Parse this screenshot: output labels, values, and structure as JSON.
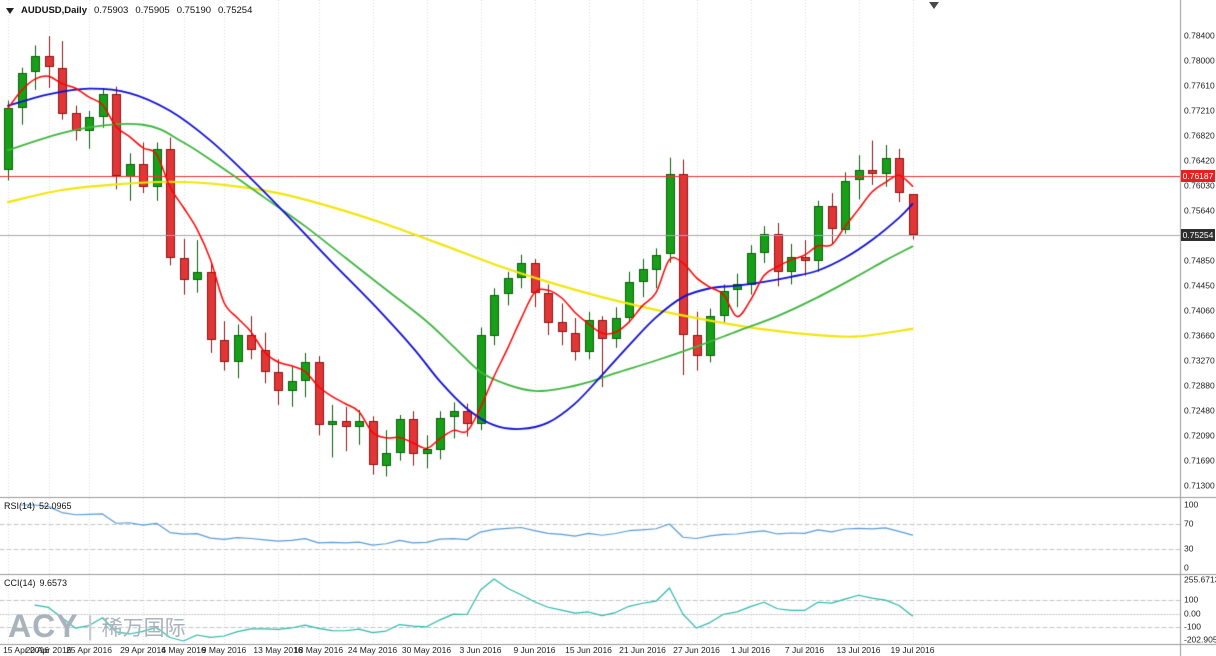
{
  "header": {
    "symbol": "AUDUSD,Daily",
    "open": "0.75903",
    "high": "0.75905",
    "low": "0.75190",
    "close": "0.75254"
  },
  "price_axis": {
    "labels": [
      "0.78400",
      "0.78000",
      "0.77610",
      "0.77210",
      "0.76820",
      "0.76420",
      "0.76030",
      "0.75640",
      "0.74850",
      "0.74450",
      "0.74060",
      "0.73660",
      "0.73270",
      "0.72880",
      "0.72480",
      "0.72090",
      "0.71690",
      "0.71300"
    ],
    "tag_red": {
      "value": "0.76187",
      "price": 0.76187
    },
    "tag_dark": {
      "value": "0.75254",
      "price": 0.75254
    }
  },
  "time_axis": {
    "labels": [
      {
        "text": "15 Apr 2016",
        "bar": 0
      },
      {
        "text": "20 Apr 2016",
        "bar": 3
      },
      {
        "text": "25 Apr 2016",
        "bar": 6
      },
      {
        "text": "29 Apr 2016",
        "bar": 10
      },
      {
        "text": "4 May 2016",
        "bar": 13
      },
      {
        "text": "9 May 2016",
        "bar": 16
      },
      {
        "text": "13 May 2016",
        "bar": 20
      },
      {
        "text": "18 May 2016",
        "bar": 23
      },
      {
        "text": "24 May 2016",
        "bar": 27
      },
      {
        "text": "30 May 2016",
        "bar": 31
      },
      {
        "text": "3 Jun 2016",
        "bar": 35
      },
      {
        "text": "9 Jun 2016",
        "bar": 39
      },
      {
        "text": "15 Jun 2016",
        "bar": 43
      },
      {
        "text": "21 Jun 2016",
        "bar": 47
      },
      {
        "text": "27 Jun 2016",
        "bar": 51
      },
      {
        "text": "1 Jul 2016",
        "bar": 55
      },
      {
        "text": "7 Jul 2016",
        "bar": 59
      },
      {
        "text": "13 Jul 2016",
        "bar": 63
      },
      {
        "text": "19 Jul 2016",
        "bar": 67
      }
    ]
  },
  "indicators": {
    "rsi": {
      "name": "RSI(14)",
      "value": "52.0965",
      "period": 14,
      "levels": [
        {
          "text": "100",
          "v": 100
        },
        {
          "text": "70",
          "v": 70
        },
        {
          "text": "30",
          "v": 30
        },
        {
          "text": "0",
          "v": 0
        }
      ],
      "dashed_levels": [
        70,
        30
      ]
    },
    "cci": {
      "name": "CCI(14)",
      "value": "9.6573",
      "period": 14,
      "levels": [
        {
          "text": "255.6713",
          "v": 255.6713
        },
        {
          "text": "100",
          "v": 100
        },
        {
          "text": "0.00",
          "v": 0
        },
        {
          "text": "-100",
          "v": -100
        },
        {
          "text": "-202.905",
          "v": -202.905
        }
      ],
      "dashed_levels": [
        100,
        -100
      ],
      "range": [
        -202.905,
        255.6713
      ]
    }
  },
  "watermark": {
    "brand": "ACY",
    "divider": "|",
    "cn": "稀万国际"
  },
  "colors": {
    "bull": "#17a017",
    "bull_border": "#0b5e0b",
    "bear": "#e23535",
    "bear_border": "#8c1616",
    "ma_fast": "#ff0000",
    "ma_mid": "#0f0fd6",
    "ma_slow": "#3fb53f",
    "ma_slowest": "#f2e50b",
    "rsi_line": "#5b9bd5",
    "cci_line": "#2fb8ad",
    "grid": "#dcdcdc",
    "level_dash": "#c4c4c4",
    "separator": "#9a9a9a",
    "hline_red": "#f23131",
    "hline_gray": "#a8a8a8",
    "axis_text": "#1c1c1c",
    "tag_red_bg": "#e81f1f",
    "tag_dark_bg": "#2e2e2e",
    "watermark": "#a9b3bc"
  },
  "chart_data": {
    "type": "candlestick",
    "symbol": "AUDUSD",
    "timeframe": "Daily",
    "title": "AUDUSD,Daily",
    "price_min": 0.713,
    "price_max": 0.784,
    "hlines": [
      {
        "price": 0.76187,
        "color_key": "hline_red",
        "label": "0.76187"
      },
      {
        "price": 0.75254,
        "color_key": "hline_gray",
        "label": "0.75254"
      }
    ],
    "candles": [
      [
        "2016.04.15",
        0.7628,
        0.7738,
        0.7612,
        0.7726
      ],
      [
        "2016.04.18",
        0.7726,
        0.779,
        0.77,
        0.7782
      ],
      [
        "2016.04.19",
        0.7782,
        0.7825,
        0.7755,
        0.7808
      ],
      [
        "2016.04.20",
        0.7808,
        0.784,
        0.7758,
        0.779
      ],
      [
        "2016.04.21",
        0.779,
        0.7832,
        0.7708,
        0.7718
      ],
      [
        "2016.04.22",
        0.7718,
        0.773,
        0.7675,
        0.769
      ],
      [
        "2016.04.25",
        0.769,
        0.7722,
        0.7662,
        0.7712
      ],
      [
        "2016.04.26",
        0.7712,
        0.7758,
        0.7695,
        0.7748
      ],
      [
        "2016.04.27",
        0.7748,
        0.776,
        0.7598,
        0.7618
      ],
      [
        "2016.04.28",
        0.7618,
        0.7655,
        0.758,
        0.7638
      ],
      [
        "2016.04.29",
        0.7638,
        0.7672,
        0.7592,
        0.7602
      ],
      [
        "2016.05.02",
        0.7602,
        0.7672,
        0.758,
        0.7662
      ],
      [
        "2016.05.03",
        0.7662,
        0.768,
        0.7478,
        0.749
      ],
      [
        "2016.05.04",
        0.749,
        0.752,
        0.7432,
        0.7455
      ],
      [
        "2016.05.05",
        0.7455,
        0.7518,
        0.7435,
        0.7468
      ],
      [
        "2016.05.06",
        0.7468,
        0.7482,
        0.734,
        0.736
      ],
      [
        "2016.05.09",
        0.736,
        0.739,
        0.7312,
        0.7325
      ],
      [
        "2016.05.10",
        0.7325,
        0.7385,
        0.73,
        0.7368
      ],
      [
        "2016.05.11",
        0.7368,
        0.7398,
        0.733,
        0.7345
      ],
      [
        "2016.05.12",
        0.7345,
        0.7372,
        0.7292,
        0.731
      ],
      [
        "2016.05.13",
        0.731,
        0.733,
        0.7258,
        0.728
      ],
      [
        "2016.05.16",
        0.728,
        0.7318,
        0.7255,
        0.7295
      ],
      [
        "2016.05.17",
        0.7295,
        0.734,
        0.727,
        0.7325
      ],
      [
        "2016.05.18",
        0.7325,
        0.7335,
        0.721,
        0.7225
      ],
      [
        "2016.05.19",
        0.7225,
        0.7258,
        0.7175,
        0.7232
      ],
      [
        "2016.05.20",
        0.7232,
        0.7255,
        0.7185,
        0.7222
      ],
      [
        "2016.05.23",
        0.7222,
        0.725,
        0.7195,
        0.7232
      ],
      [
        "2016.05.24",
        0.7232,
        0.724,
        0.7148,
        0.7162
      ],
      [
        "2016.05.25",
        0.7162,
        0.7218,
        0.7145,
        0.7182
      ],
      [
        "2016.05.26",
        0.7182,
        0.7242,
        0.717,
        0.7235
      ],
      [
        "2016.05.27",
        0.7235,
        0.7248,
        0.7162,
        0.718
      ],
      [
        "2016.05.30",
        0.718,
        0.721,
        0.7158,
        0.7188
      ],
      [
        "2016.05.31",
        0.7188,
        0.7248,
        0.7172,
        0.7238
      ],
      [
        "2016.06.01",
        0.7238,
        0.7262,
        0.7205,
        0.7248
      ],
      [
        "2016.06.02",
        0.7248,
        0.726,
        0.7208,
        0.7228
      ],
      [
        "2016.06.03",
        0.7228,
        0.738,
        0.7218,
        0.7368
      ],
      [
        "2016.06.06",
        0.7368,
        0.7442,
        0.7352,
        0.7432
      ],
      [
        "2016.06.07",
        0.7432,
        0.7468,
        0.7415,
        0.7458
      ],
      [
        "2016.06.08",
        0.7458,
        0.7495,
        0.7442,
        0.7482
      ],
      [
        "2016.06.09",
        0.7482,
        0.7488,
        0.7412,
        0.7435
      ],
      [
        "2016.06.10",
        0.7435,
        0.7448,
        0.7368,
        0.7388
      ],
      [
        "2016.06.13",
        0.7388,
        0.7418,
        0.7352,
        0.7372
      ],
      [
        "2016.06.14",
        0.7372,
        0.7395,
        0.7328,
        0.7342
      ],
      [
        "2016.06.15",
        0.7342,
        0.7405,
        0.733,
        0.7392
      ],
      [
        "2016.06.16",
        0.7392,
        0.7398,
        0.7286,
        0.7362
      ],
      [
        "2016.06.17",
        0.7362,
        0.7412,
        0.7348,
        0.7395
      ],
      [
        "2016.06.20",
        0.7395,
        0.7468,
        0.7388,
        0.7452
      ],
      [
        "2016.06.21",
        0.7452,
        0.7488,
        0.7428,
        0.7472
      ],
      [
        "2016.06.22",
        0.7472,
        0.7505,
        0.7442,
        0.7495
      ],
      [
        "2016.06.23",
        0.7495,
        0.7648,
        0.7482,
        0.7622
      ],
      [
        "2016.06.24",
        0.7622,
        0.7645,
        0.7305,
        0.7368
      ],
      [
        "2016.06.27",
        0.7368,
        0.7405,
        0.7312,
        0.7335
      ],
      [
        "2016.06.28",
        0.7335,
        0.741,
        0.7325,
        0.7398
      ],
      [
        "2016.06.29",
        0.7398,
        0.7448,
        0.7388,
        0.7438
      ],
      [
        "2016.06.30",
        0.7438,
        0.7465,
        0.7412,
        0.7448
      ],
      [
        "2016.07.01",
        0.7448,
        0.751,
        0.7432,
        0.7498
      ],
      [
        "2016.07.04",
        0.7498,
        0.754,
        0.7482,
        0.7528
      ],
      [
        "2016.07.05",
        0.7528,
        0.7545,
        0.7445,
        0.7468
      ],
      [
        "2016.07.06",
        0.7468,
        0.7512,
        0.7448,
        0.7492
      ],
      [
        "2016.07.07",
        0.7492,
        0.7518,
        0.7462,
        0.7485
      ],
      [
        "2016.07.08",
        0.7485,
        0.758,
        0.7468,
        0.7572
      ],
      [
        "2016.07.11",
        0.7572,
        0.7592,
        0.7512,
        0.7535
      ],
      [
        "2016.07.12",
        0.7535,
        0.7625,
        0.7528,
        0.7612
      ],
      [
        "2016.07.13",
        0.7612,
        0.7652,
        0.7582,
        0.7628
      ],
      [
        "2016.07.14",
        0.7628,
        0.7675,
        0.7605,
        0.7622
      ],
      [
        "2016.07.15",
        0.7622,
        0.7668,
        0.7602,
        0.7648
      ],
      [
        "2016.07.18",
        0.7648,
        0.7662,
        0.7578,
        0.7592
      ],
      [
        "2016.07.19",
        0.75903,
        0.75905,
        0.7519,
        0.75254
      ]
    ],
    "moving_averages": [
      {
        "name": "ma-fast-red",
        "color_key": "ma_fast",
        "period": 5,
        "source": "close",
        "width": 1.5
      },
      {
        "name": "ma-mid-blue",
        "color_key": "ma_mid",
        "width": 1.8,
        "points": [
          [
            0,
            0.773
          ],
          [
            3,
            0.7748
          ],
          [
            6,
            0.7757
          ],
          [
            9,
            0.775
          ],
          [
            12,
            0.7722
          ],
          [
            15,
            0.7675
          ],
          [
            18,
            0.7615
          ],
          [
            21,
            0.755
          ],
          [
            24,
            0.7483
          ],
          [
            27,
            0.7418
          ],
          [
            30,
            0.7348
          ],
          [
            32,
            0.7295
          ],
          [
            34,
            0.7252
          ],
          [
            36,
            0.7226
          ],
          [
            38,
            0.722
          ],
          [
            40,
            0.723
          ],
          [
            42,
            0.726
          ],
          [
            44,
            0.7305
          ],
          [
            46,
            0.7352
          ],
          [
            48,
            0.7396
          ],
          [
            50,
            0.7428
          ],
          [
            52,
            0.7442
          ],
          [
            54,
            0.7446
          ],
          [
            56,
            0.7452
          ],
          [
            58,
            0.746
          ],
          [
            60,
            0.747
          ],
          [
            62,
            0.749
          ],
          [
            64,
            0.7518
          ],
          [
            66,
            0.7553
          ],
          [
            67,
            0.7575
          ]
        ]
      },
      {
        "name": "ma-slow-green",
        "color_key": "ma_slow",
        "width": 1.8,
        "points": [
          [
            0,
            0.766
          ],
          [
            5,
            0.7692
          ],
          [
            10,
            0.77
          ],
          [
            13,
            0.7672
          ],
          [
            16,
            0.763
          ],
          [
            19,
            0.7585
          ],
          [
            22,
            0.754
          ],
          [
            25,
            0.749
          ],
          [
            28,
            0.744
          ],
          [
            31,
            0.739
          ],
          [
            33,
            0.735
          ],
          [
            35,
            0.731
          ],
          [
            37,
            0.729
          ],
          [
            39,
            0.728
          ],
          [
            41,
            0.7284
          ],
          [
            43,
            0.7294
          ],
          [
            45,
            0.7308
          ],
          [
            48,
            0.7328
          ],
          [
            51,
            0.735
          ],
          [
            54,
            0.7374
          ],
          [
            57,
            0.7398
          ],
          [
            60,
            0.7428
          ],
          [
            63,
            0.7462
          ],
          [
            65,
            0.7486
          ],
          [
            67,
            0.7508
          ]
        ]
      },
      {
        "name": "ma-slowest-yellow",
        "color_key": "ma_slowest",
        "width": 2.2,
        "points": [
          [
            0,
            0.7578
          ],
          [
            4,
            0.7597
          ],
          [
            8,
            0.7606
          ],
          [
            12,
            0.761
          ],
          [
            16,
            0.7605
          ],
          [
            20,
            0.7592
          ],
          [
            24,
            0.757
          ],
          [
            28,
            0.7543
          ],
          [
            32,
            0.7512
          ],
          [
            36,
            0.748
          ],
          [
            40,
            0.7452
          ],
          [
            44,
            0.7428
          ],
          [
            48,
            0.7408
          ],
          [
            52,
            0.7391
          ],
          [
            56,
            0.7377
          ],
          [
            60,
            0.7368
          ],
          [
            63,
            0.7366
          ],
          [
            67,
            0.7378
          ]
        ]
      }
    ]
  }
}
